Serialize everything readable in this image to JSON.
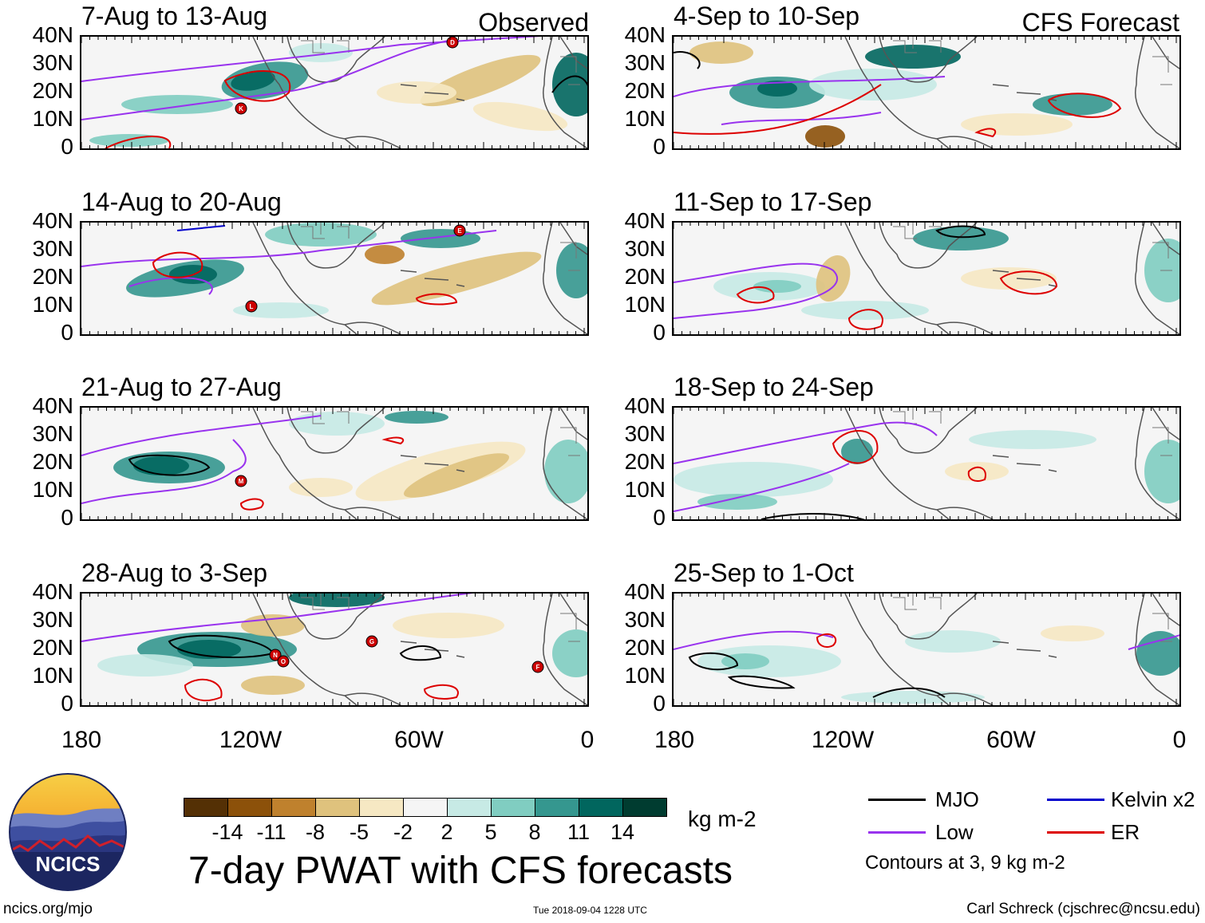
{
  "headers": {
    "observed_label": "Observed",
    "forecast_label": "CFS Forecast"
  },
  "panels_left": [
    {
      "title": "7-Aug to 13-Aug",
      "storms": [
        "K",
        "D"
      ]
    },
    {
      "title": "14-Aug to 20-Aug",
      "storms": [
        "L",
        "E"
      ]
    },
    {
      "title": "21-Aug to 27-Aug",
      "storms": [
        "M"
      ]
    },
    {
      "title": "28-Aug to 3-Sep",
      "storms": [
        "N",
        "O",
        "G",
        "F"
      ]
    }
  ],
  "panels_right": [
    {
      "title": "4-Sep to 10-Sep"
    },
    {
      "title": "11-Sep to 17-Sep"
    },
    {
      "title": "18-Sep to 24-Sep"
    },
    {
      "title": "25-Sep to 1-Oct"
    }
  ],
  "y_axis_labels": [
    "40N",
    "30N",
    "20N",
    "10N",
    "0"
  ],
  "x_axis_labels": [
    "180",
    "120W",
    "60W",
    "0"
  ],
  "colorbar": {
    "unit": "kg m-2",
    "tick_labels": [
      "-14",
      "-11",
      "-8",
      "-5",
      "-2",
      "2",
      "5",
      "8",
      "11",
      "14"
    ],
    "colors": [
      "#543005",
      "#8c510a",
      "#bf812d",
      "#dfc27d",
      "#f6e8c3",
      "#f5f5f5",
      "#c7eae5",
      "#80cdc1",
      "#35978f",
      "#01665e",
      "#003c30"
    ]
  },
  "legend": {
    "items": [
      {
        "label": "MJO",
        "color": "#000000"
      },
      {
        "label": "Kelvin x2",
        "color": "#0000cc"
      },
      {
        "label": "Low",
        "color": "#9933ee"
      },
      {
        "label": "ER",
        "color": "#dd0000"
      }
    ],
    "note": "Contours at 3, 9 kg m-2"
  },
  "title": "7-day PWAT with CFS forecasts",
  "logo_text": "NCICS",
  "footer": {
    "url": "ncics.org/mjo",
    "timestamp": "Tue 2018-09-04 1228 UTC",
    "credit": "Carl Schreck (cjschrec@ncsu.edu)"
  }
}
